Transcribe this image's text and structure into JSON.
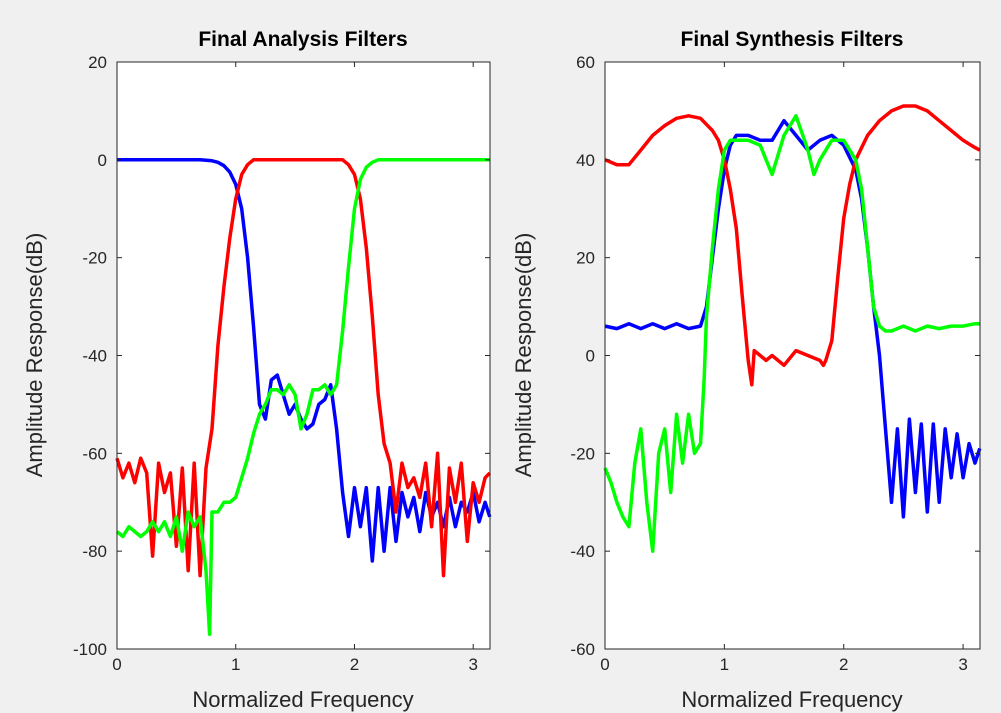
{
  "figure": {
    "background": "#f0f0f0",
    "axes_background": "#ffffff"
  },
  "chart_data": [
    {
      "type": "line",
      "title": "Final Analysis Filters",
      "xlabel": "Normalized Frequency",
      "ylabel": "Amplitude Response(dB)",
      "xlim": [
        0,
        3.14159
      ],
      "ylim": [
        -100,
        20
      ],
      "xticks": [
        "0",
        "1",
        "2",
        "3"
      ],
      "yticks": [
        "-100",
        "-80",
        "-60",
        "-40",
        "-20",
        "0",
        "20"
      ],
      "grid": false,
      "series": [
        {
          "color": "#0000ff",
          "x": [
            0,
            0.1,
            0.2,
            0.3,
            0.4,
            0.5,
            0.6,
            0.7,
            0.8,
            0.85,
            0.9,
            0.95,
            1.0,
            1.05,
            1.1,
            1.15,
            1.2,
            1.25,
            1.3,
            1.35,
            1.4,
            1.45,
            1.5,
            1.55,
            1.6,
            1.65,
            1.7,
            1.75,
            1.8,
            1.85,
            1.9,
            1.95,
            2.0,
            2.05,
            2.1,
            2.15,
            2.2,
            2.25,
            2.3,
            2.35,
            2.4,
            2.45,
            2.5,
            2.55,
            2.6,
            2.65,
            2.7,
            2.75,
            2.8,
            2.85,
            2.9,
            2.95,
            3.0,
            3.05,
            3.1,
            3.14
          ],
          "y": [
            0,
            0,
            0,
            0,
            0,
            0,
            0,
            0,
            -0.2,
            -0.5,
            -1.2,
            -2.5,
            -5,
            -10,
            -20,
            -34,
            -50,
            -53,
            -45,
            -44,
            -48,
            -52,
            -50,
            -53,
            -55,
            -54,
            -50,
            -49,
            -46,
            -55,
            -68,
            -77,
            -67,
            -75,
            -67,
            -82,
            -67,
            -80,
            -67,
            -78,
            -68,
            -73,
            -69,
            -76,
            -68,
            -73,
            -70,
            -75,
            -69,
            -75,
            -70,
            -72,
            -68,
            -74,
            -70,
            -73
          ]
        },
        {
          "color": "#ff0000",
          "x": [
            0,
            0.05,
            0.1,
            0.15,
            0.2,
            0.25,
            0.3,
            0.35,
            0.4,
            0.45,
            0.5,
            0.55,
            0.6,
            0.65,
            0.7,
            0.75,
            0.8,
            0.85,
            0.9,
            0.95,
            1.0,
            1.05,
            1.1,
            1.15,
            1.2,
            1.3,
            1.5,
            1.7,
            1.9,
            1.95,
            2.0,
            2.05,
            2.1,
            2.15,
            2.2,
            2.25,
            2.3,
            2.35,
            2.4,
            2.45,
            2.5,
            2.55,
            2.6,
            2.65,
            2.7,
            2.75,
            2.8,
            2.85,
            2.9,
            2.95,
            3.0,
            3.05,
            3.1,
            3.14
          ],
          "y": [
            -61,
            -65,
            -62,
            -66,
            -61,
            -64,
            -81,
            -62,
            -68,
            -64,
            -79,
            -63,
            -84,
            -62,
            -85,
            -63,
            -55,
            -38,
            -26,
            -16,
            -8,
            -3,
            -1,
            0,
            0,
            0,
            0,
            0,
            0,
            -1,
            -3,
            -8,
            -18,
            -32,
            -48,
            -58,
            -62,
            -72,
            -62,
            -67,
            -65,
            -69,
            -62,
            -75,
            -60,
            -85,
            -63,
            -70,
            -62,
            -78,
            -66,
            -70,
            -65,
            -64
          ]
        },
        {
          "color": "#00ff00",
          "x": [
            0,
            0.05,
            0.1,
            0.15,
            0.2,
            0.25,
            0.3,
            0.35,
            0.4,
            0.45,
            0.5,
            0.55,
            0.6,
            0.65,
            0.7,
            0.75,
            0.78,
            0.8,
            0.85,
            0.9,
            0.95,
            1.0,
            1.05,
            1.1,
            1.15,
            1.2,
            1.25,
            1.3,
            1.35,
            1.4,
            1.45,
            1.5,
            1.55,
            1.6,
            1.65,
            1.7,
            1.75,
            1.8,
            1.85,
            1.9,
            1.95,
            2.0,
            2.05,
            2.1,
            2.15,
            2.2,
            2.3,
            2.5,
            2.7,
            3.0,
            3.14
          ],
          "y": [
            -76,
            -77,
            -75,
            -76,
            -77,
            -76,
            -74,
            -76,
            -74,
            -77,
            -73,
            -80,
            -72,
            -75,
            -73,
            -84,
            -97,
            -72,
            -72,
            -70,
            -70,
            -69,
            -65,
            -61,
            -56,
            -52,
            -50,
            -47,
            -47,
            -48,
            -46,
            -48,
            -55,
            -52,
            -47,
            -47,
            -46,
            -48,
            -46,
            -35,
            -22,
            -10,
            -4,
            -1.5,
            -0.5,
            0,
            0,
            0,
            0,
            0,
            0
          ]
        }
      ]
    },
    {
      "type": "line",
      "title": "Final Synthesis Filters",
      "xlabel": "Normalized Frequency",
      "ylabel": "Amplitude Response(dB)",
      "xlim": [
        0,
        3.14159
      ],
      "ylim": [
        -60,
        60
      ],
      "xticks": [
        "0",
        "1",
        "2",
        "3"
      ],
      "yticks": [
        "-60",
        "-40",
        "-20",
        "0",
        "20",
        "40",
        "60"
      ],
      "grid": false,
      "series": [
        {
          "color": "#0000ff",
          "x": [
            0,
            0.1,
            0.2,
            0.3,
            0.4,
            0.5,
            0.6,
            0.7,
            0.8,
            0.85,
            0.9,
            0.95,
            1.0,
            1.05,
            1.1,
            1.2,
            1.3,
            1.4,
            1.5,
            1.6,
            1.7,
            1.8,
            1.9,
            2.0,
            2.1,
            2.15,
            2.2,
            2.25,
            2.3,
            2.35,
            2.4,
            2.45,
            2.5,
            2.55,
            2.6,
            2.65,
            2.7,
            2.75,
            2.8,
            2.85,
            2.9,
            2.95,
            3.0,
            3.05,
            3.1,
            3.14
          ],
          "y": [
            6,
            5.5,
            6.5,
            5.5,
            6.5,
            5.5,
            6.5,
            5.5,
            6,
            10,
            20,
            30,
            38,
            43,
            45,
            45,
            44,
            44,
            48,
            45,
            42,
            44,
            45,
            43,
            38,
            32,
            22,
            10,
            0,
            -15,
            -30,
            -15,
            -33,
            -13,
            -28,
            -14,
            -32,
            -14,
            -30,
            -15,
            -25,
            -16,
            -25,
            -18,
            -22,
            -19
          ]
        },
        {
          "color": "#ff0000",
          "x": [
            0,
            0.1,
            0.2,
            0.3,
            0.4,
            0.5,
            0.6,
            0.7,
            0.8,
            0.9,
            0.95,
            1.0,
            1.05,
            1.1,
            1.15,
            1.2,
            1.23,
            1.25,
            1.3,
            1.35,
            1.4,
            1.5,
            1.6,
            1.7,
            1.8,
            1.83,
            1.85,
            1.9,
            1.95,
            2.0,
            2.05,
            2.1,
            2.2,
            2.3,
            2.4,
            2.5,
            2.6,
            2.7,
            2.8,
            2.9,
            3.0,
            3.1,
            3.14
          ],
          "y": [
            40,
            39,
            39,
            42,
            45,
            47,
            48.5,
            49,
            48.5,
            46,
            44,
            40,
            34,
            26,
            12,
            -1,
            -6,
            1,
            0,
            -1,
            0,
            -2,
            1,
            0,
            -1,
            -2,
            -1,
            3,
            16,
            28,
            35,
            40,
            45,
            48,
            50,
            51,
            51,
            50,
            48,
            46,
            44,
            42.5,
            42
          ]
        },
        {
          "color": "#00ff00",
          "x": [
            0,
            0.05,
            0.1,
            0.15,
            0.2,
            0.25,
            0.3,
            0.35,
            0.4,
            0.45,
            0.5,
            0.55,
            0.6,
            0.65,
            0.7,
            0.75,
            0.8,
            0.83,
            0.85,
            0.9,
            0.95,
            1.0,
            1.05,
            1.1,
            1.2,
            1.3,
            1.35,
            1.4,
            1.5,
            1.6,
            1.7,
            1.75,
            1.8,
            1.9,
            2.0,
            2.1,
            2.15,
            2.2,
            2.25,
            2.3,
            2.35,
            2.4,
            2.5,
            2.6,
            2.7,
            2.8,
            2.9,
            3.0,
            3.1,
            3.14
          ],
          "y": [
            -23,
            -26,
            -30,
            -33,
            -35,
            -22,
            -15,
            -30,
            -40,
            -20,
            -15,
            -28,
            -12,
            -22,
            -12,
            -20,
            -18,
            -5,
            8,
            22,
            34,
            42,
            44,
            44,
            44,
            43,
            40,
            37,
            45,
            49,
            42,
            37,
            40,
            44,
            44,
            40,
            34,
            22,
            10,
            6,
            5,
            5,
            6,
            5,
            6,
            5.5,
            6,
            6,
            6.5,
            6.5
          ]
        }
      ]
    }
  ]
}
